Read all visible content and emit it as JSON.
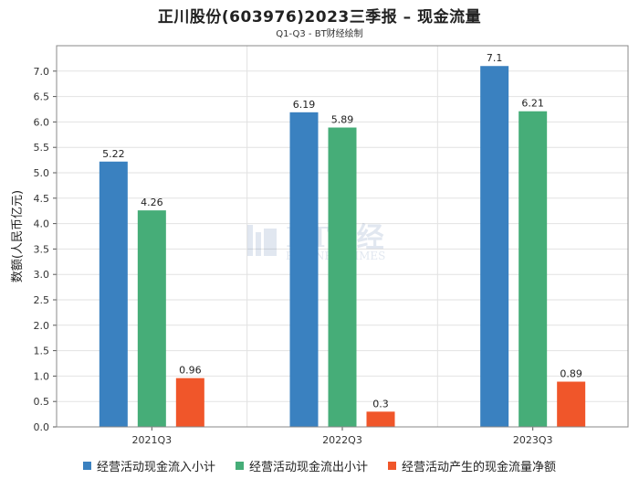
{
  "chart_data": {
    "type": "bar",
    "title": "正川股份(603976)2023三季报 – 现金流量",
    "subtitle": "Q1-Q3 - BT财经绘制",
    "ylabel": "数额(人民币亿元)",
    "xlabel": "",
    "categories": [
      "2021Q3",
      "2022Q3",
      "2023Q3"
    ],
    "ylim": [
      0,
      7.5
    ],
    "yticks": [
      "0.0",
      "0.5",
      "1.0",
      "1.5",
      "2.0",
      "2.5",
      "3.0",
      "3.5",
      "4.0",
      "4.5",
      "5.0",
      "5.5",
      "6.0",
      "6.5",
      "7.0"
    ],
    "grid": true,
    "legend_position": "bottom",
    "series": [
      {
        "name": "经营活动现金流入小计",
        "color": "#3a81c0",
        "values": [
          5.22,
          6.19,
          7.1
        ],
        "labels": [
          "5.22",
          "6.19",
          "7.1"
        ]
      },
      {
        "name": "经营活动现金流出小计",
        "color": "#46ad78",
        "values": [
          4.26,
          5.89,
          6.21
        ],
        "labels": [
          "4.26",
          "5.89",
          "6.21"
        ]
      },
      {
        "name": "经营活动产生的现金流量净额",
        "color": "#f0562a",
        "values": [
          0.96,
          0.3,
          0.89
        ],
        "labels": [
          "0.96",
          "0.3",
          "0.89"
        ]
      }
    ],
    "watermark": {
      "logo_text": "BT财经",
      "sub_text": "BUSINESSTIMES"
    }
  }
}
